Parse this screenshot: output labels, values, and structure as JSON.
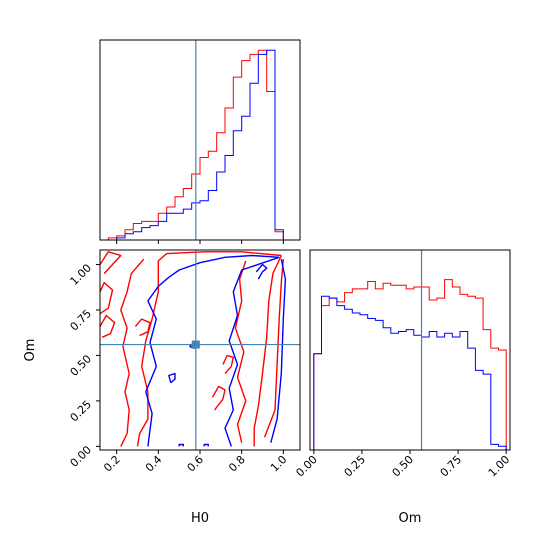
{
  "chart_data": {
    "type": "corner",
    "parameters": [
      "H0",
      "Om"
    ],
    "truth": {
      "H0": 0.58,
      "Om": 0.56
    },
    "colors": {
      "red": "#ff0000",
      "blue": "#0000ff",
      "truth": "#4682b4"
    },
    "panels": {
      "H0_hist": {
        "type": "histogram",
        "xlim": [
          0.12,
          1.08
        ],
        "bin_edges": [
          0.12,
          0.16,
          0.2,
          0.24,
          0.28,
          0.32,
          0.36,
          0.4,
          0.44,
          0.48,
          0.52,
          0.56,
          0.6,
          0.64,
          0.68,
          0.72,
          0.76,
          0.8,
          0.84,
          0.88,
          0.92,
          0.96,
          1.0,
          1.04
        ],
        "series": [
          {
            "color": "red",
            "counts": [
              0.0,
              0.01,
              0.02,
              0.05,
              0.08,
              0.09,
              0.09,
              0.13,
              0.16,
              0.21,
              0.25,
              0.32,
              0.4,
              0.43,
              0.52,
              0.64,
              0.79,
              0.87,
              0.9,
              0.92,
              0.72,
              0.04,
              0.0
            ]
          },
          {
            "color": "blue",
            "counts": [
              0.0,
              0.0,
              0.01,
              0.03,
              0.04,
              0.06,
              0.07,
              0.09,
              0.13,
              0.13,
              0.15,
              0.18,
              0.19,
              0.24,
              0.33,
              0.41,
              0.53,
              0.6,
              0.76,
              0.9,
              0.92,
              0.05,
              0.0
            ]
          }
        ],
        "x_ticks": [
          0.2,
          0.4,
          0.6,
          0.8,
          1.0
        ]
      },
      "Om_hist": {
        "type": "histogram",
        "xlim": [
          -0.02,
          1.02
        ],
        "bin_edges": [
          0.0,
          0.04,
          0.08,
          0.12,
          0.16,
          0.2,
          0.24,
          0.28,
          0.32,
          0.36,
          0.4,
          0.44,
          0.48,
          0.52,
          0.56,
          0.6,
          0.64,
          0.68,
          0.72,
          0.76,
          0.8,
          0.84,
          0.88,
          0.92,
          0.96,
          1.0
        ],
        "series": [
          {
            "color": "red",
            "counts": [
              0.52,
              0.78,
              0.82,
              0.8,
              0.85,
              0.87,
              0.87,
              0.91,
              0.87,
              0.9,
              0.89,
              0.89,
              0.87,
              0.88,
              0.88,
              0.81,
              0.82,
              0.92,
              0.88,
              0.84,
              0.83,
              0.82,
              0.65,
              0.55,
              0.54
            ]
          },
          {
            "color": "blue",
            "counts": [
              0.52,
              0.83,
              0.82,
              0.78,
              0.76,
              0.74,
              0.73,
              0.71,
              0.7,
              0.66,
              0.63,
              0.64,
              0.65,
              0.62,
              0.61,
              0.64,
              0.61,
              0.63,
              0.61,
              0.64,
              0.55,
              0.43,
              0.41,
              0.03,
              0.02
            ]
          }
        ],
        "x_ticks": [
          0.0,
          0.25,
          0.5,
          0.75,
          1.0
        ],
        "x_tick_labels": [
          "0.00",
          "0.25",
          "0.50",
          "0.75",
          "1.00"
        ],
        "xlabel": "Om"
      },
      "H0_Om_contour": {
        "type": "contour",
        "xlim": [
          0.12,
          1.08
        ],
        "ylim": [
          -0.02,
          1.08
        ],
        "x_ticks": [
          0.2,
          0.4,
          0.6,
          0.8,
          1.0
        ],
        "x_tick_labels": [
          "0.2",
          "0.4",
          "0.6",
          "0.8",
          "1.0"
        ],
        "y_ticks": [
          0.0,
          0.25,
          0.5,
          0.75,
          1.0
        ],
        "y_tick_labels": [
          "0.00",
          "0.25",
          "0.50",
          "0.75",
          "1.00"
        ],
        "xlabel": "H0",
        "ylabel": "Om",
        "contours": [
          {
            "color": "red",
            "points": [
              [
                0.99,
                1.05
              ],
              [
                0.8,
                1.07
              ],
              [
                0.62,
                1.07
              ],
              [
                0.44,
                1.06
              ],
              [
                0.4,
                1.02
              ],
              [
                0.4,
                0.85
              ],
              [
                0.37,
                0.7
              ],
              [
                0.34,
                0.58
              ],
              [
                0.32,
                0.44
              ],
              [
                0.35,
                0.3
              ],
              [
                0.35,
                0.15
              ],
              [
                0.31,
                0.07
              ],
              [
                0.3,
                0.0
              ]
            ]
          },
          {
            "color": "red",
            "points": [
              [
                0.86,
                0.0
              ],
              [
                0.86,
                0.1
              ],
              [
                0.88,
                0.22
              ],
              [
                0.9,
                0.4
              ],
              [
                0.92,
                0.6
              ],
              [
                0.93,
                0.8
              ],
              [
                0.95,
                0.95
              ],
              [
                0.99,
                1.05
              ]
            ]
          },
          {
            "color": "red",
            "points": [
              [
                0.22,
                0.0
              ],
              [
                0.25,
                0.07
              ],
              [
                0.26,
                0.2
              ],
              [
                0.24,
                0.3
              ],
              [
                0.26,
                0.4
              ],
              [
                0.23,
                0.55
              ],
              [
                0.25,
                0.65
              ],
              [
                0.22,
                0.75
              ],
              [
                0.25,
                0.85
              ],
              [
                0.27,
                0.95
              ],
              [
                0.33,
                1.03
              ]
            ]
          },
          {
            "color": "red",
            "points": [
              [
                0.8,
                0.02
              ],
              [
                0.78,
                0.12
              ],
              [
                0.82,
                0.25
              ],
              [
                0.78,
                0.38
              ],
              [
                0.81,
                0.52
              ],
              [
                0.77,
                0.65
              ],
              [
                0.8,
                0.8
              ],
              [
                0.79,
                0.92
              ],
              [
                0.82,
                1.02
              ]
            ]
          },
          {
            "color": "red",
            "points": [
              [
                0.91,
                0.05
              ],
              [
                0.96,
                0.2
              ],
              [
                0.97,
                0.45
              ],
              [
                0.98,
                0.7
              ],
              [
                0.99,
                0.9
              ],
              [
                1.0,
                1.03
              ]
            ]
          },
          {
            "color": "red",
            "points": [
              [
                0.12,
                0.73
              ],
              [
                0.16,
                0.76
              ],
              [
                0.18,
                0.86
              ],
              [
                0.14,
                0.9
              ],
              [
                0.12,
                0.85
              ]
            ]
          },
          {
            "color": "red",
            "points": [
              [
                0.13,
                0.6
              ],
              [
                0.17,
                0.62
              ],
              [
                0.19,
                0.68
              ],
              [
                0.15,
                0.72
              ],
              [
                0.12,
                0.66
              ]
            ]
          },
          {
            "color": "red",
            "points": [
              [
                0.14,
                0.95
              ],
              [
                0.18,
                1.0
              ],
              [
                0.22,
                1.05
              ],
              [
                0.16,
                1.07
              ],
              [
                0.12,
                1.0
              ]
            ]
          },
          {
            "color": "red",
            "points": [
              [
                0.31,
                0.61
              ],
              [
                0.35,
                0.63
              ],
              [
                0.36,
                0.68
              ],
              [
                0.32,
                0.7
              ],
              [
                0.29,
                0.66
              ]
            ]
          },
          {
            "color": "red",
            "points": [
              [
                0.67,
                0.2
              ],
              [
                0.71,
                0.26
              ],
              [
                0.72,
                0.31
              ],
              [
                0.69,
                0.33
              ],
              [
                0.66,
                0.27
              ]
            ]
          },
          {
            "color": "red",
            "points": [
              [
                0.72,
                0.4
              ],
              [
                0.75,
                0.44
              ],
              [
                0.76,
                0.49
              ],
              [
                0.73,
                0.5
              ],
              [
                0.71,
                0.45
              ]
            ]
          },
          {
            "color": "blue",
            "points": [
              [
                0.98,
                1.04
              ],
              [
                0.85,
                1.05
              ],
              [
                0.72,
                1.04
              ],
              [
                0.6,
                1.01
              ],
              [
                0.5,
                0.97
              ],
              [
                0.45,
                0.93
              ],
              [
                0.4,
                0.88
              ],
              [
                0.35,
                0.8
              ],
              [
                0.39,
                0.7
              ],
              [
                0.36,
                0.57
              ],
              [
                0.39,
                0.44
              ],
              [
                0.34,
                0.3
              ],
              [
                0.37,
                0.18
              ],
              [
                0.35,
                0.0
              ]
            ]
          },
          {
            "color": "blue",
            "points": [
              [
                0.75,
                0.0
              ],
              [
                0.72,
                0.1
              ],
              [
                0.76,
                0.2
              ],
              [
                0.74,
                0.32
              ],
              [
                0.78,
                0.45
              ],
              [
                0.74,
                0.58
              ],
              [
                0.78,
                0.72
              ],
              [
                0.76,
                0.85
              ],
              [
                0.8,
                0.97
              ],
              [
                0.98,
                1.04
              ]
            ]
          },
          {
            "color": "blue",
            "points": [
              [
                0.94,
                0.02
              ],
              [
                0.97,
                0.15
              ],
              [
                0.99,
                0.4
              ],
              [
                1.0,
                0.7
              ],
              [
                1.01,
                0.92
              ],
              [
                0.99,
                1.03
              ]
            ]
          },
          {
            "color": "blue",
            "points": [
              [
                0.55,
                0.55
              ],
              [
                0.57,
                0.54
              ],
              [
                0.59,
                0.55
              ],
              [
                0.57,
                0.57
              ],
              [
                0.55,
                0.55
              ]
            ]
          },
          {
            "color": "blue",
            "points": [
              [
                0.46,
                0.35
              ],
              [
                0.48,
                0.37
              ],
              [
                0.48,
                0.4
              ],
              [
                0.45,
                0.39
              ],
              [
                0.46,
                0.35
              ]
            ]
          },
          {
            "color": "blue",
            "points": [
              [
                0.5,
                0.0
              ],
              [
                0.5,
                0.01
              ],
              [
                0.52,
                0.01
              ],
              [
                0.52,
                0.0
              ]
            ]
          },
          {
            "color": "blue",
            "points": [
              [
                0.62,
                0.0
              ],
              [
                0.62,
                0.01
              ],
              [
                0.64,
                0.01
              ],
              [
                0.64,
                0.0
              ]
            ]
          },
          {
            "color": "blue",
            "points": [
              [
                0.88,
                0.92
              ],
              [
                0.9,
                0.96
              ],
              [
                0.92,
                0.98
              ],
              [
                0.9,
                1.0
              ],
              [
                0.87,
                0.96
              ]
            ]
          }
        ]
      }
    }
  }
}
